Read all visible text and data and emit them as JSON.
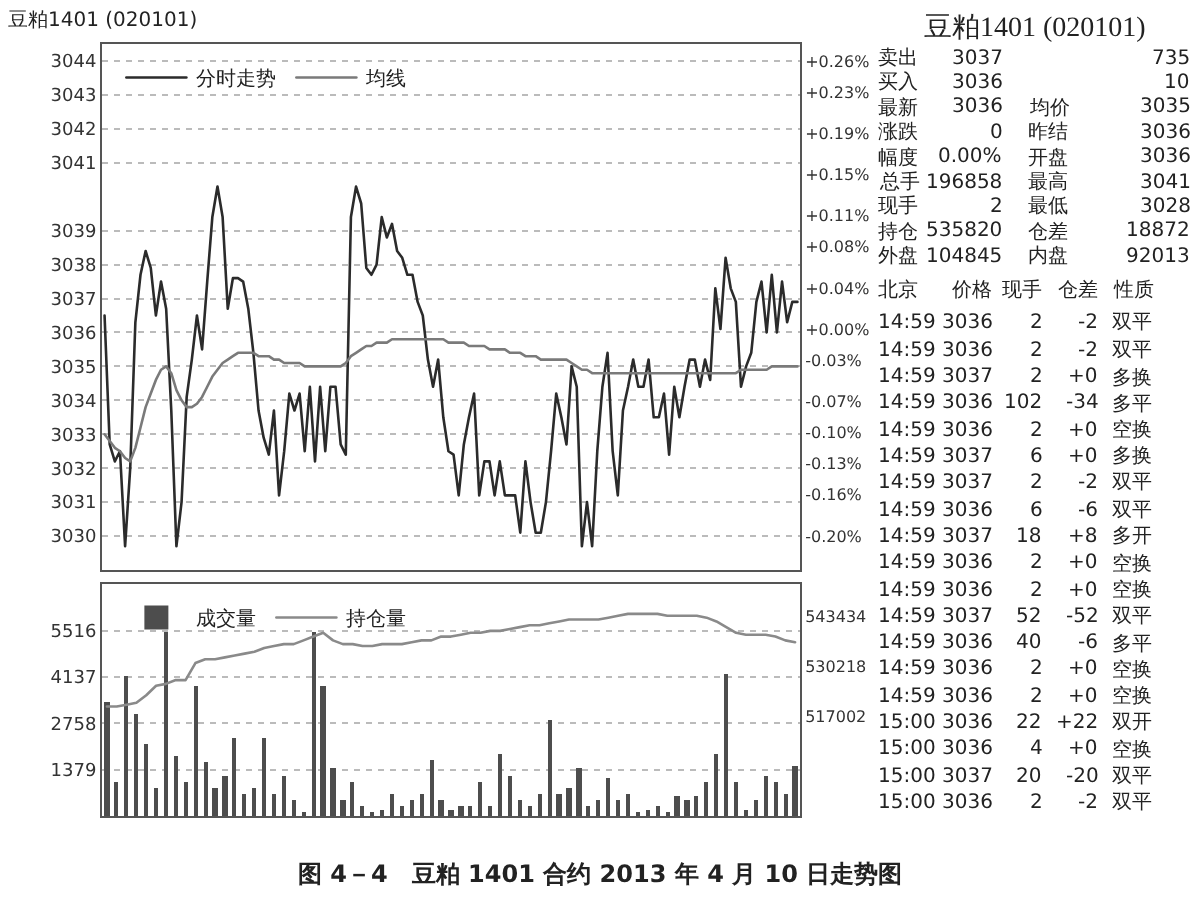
{
  "chart_data": [
    {
      "type": "line",
      "title": "豆粕1401 (020101)",
      "annotations": [
        "图 4－4　豆粕 1401 合约 2013 年 4 月 10 日走势图"
      ],
      "categories": [
        null,
        null,
        null,
        null,
        null,
        null,
        null,
        null,
        null,
        null,
        null,
        null,
        null,
        null,
        null,
        null,
        null,
        null,
        null,
        null,
        null,
        null,
        null,
        null,
        null,
        null,
        null,
        null,
        null,
        null,
        null,
        null,
        null,
        null,
        null,
        null,
        null,
        null,
        null,
        null,
        null,
        null,
        null,
        null,
        null,
        null,
        null,
        null,
        null,
        null,
        null,
        null,
        null,
        null,
        null,
        null,
        null,
        null,
        null,
        null,
        null,
        null,
        null,
        null,
        null,
        null,
        null,
        null,
        null,
        null,
        null,
        null,
        null,
        null,
        null,
        null,
        null,
        null,
        null,
        null,
        null,
        null,
        null,
        null,
        null,
        null,
        null,
        null,
        null,
        null,
        null,
        null,
        null,
        null,
        null,
        null,
        null,
        null,
        null,
        null,
        null,
        null,
        null,
        null,
        null,
        null,
        null,
        null,
        null,
        null,
        null,
        null,
        null,
        null,
        null,
        null,
        null,
        null,
        null,
        null,
        null,
        null,
        null,
        null,
        null,
        null,
        null,
        null,
        null,
        null,
        null,
        null,
        null,
        null,
        null,
        null
      ],
      "series": [
        {
          "name": "分时走势",
          "color": "#2b2b2b",
          "values": [
            3036.5,
            3032.7,
            3032.2,
            3032.5,
            3029.7,
            3032.0,
            3036.3,
            3037.7,
            3038.4,
            3037.9,
            3036.5,
            3037.5,
            3036.7,
            3033.7,
            3029.7,
            3031.0,
            3034.1,
            3035.2,
            3036.5,
            3035.5,
            3037.5,
            3039.4,
            3040.3,
            3039.4,
            3036.7,
            3037.6,
            3037.6,
            3037.5,
            3036.7,
            3035.4,
            3033.7,
            3032.9,
            3032.4,
            3033.7,
            3031.2,
            3032.5,
            3034.2,
            3033.7,
            3034.2,
            3032.5,
            3034.4,
            3032.2,
            3034.4,
            3032.5,
            3034.4,
            3034.4,
            3032.7,
            3032.4,
            3039.4,
            3040.3,
            3039.8,
            3037.9,
            3037.7,
            3038.0,
            3039.4,
            3038.8,
            3039.2,
            3038.4,
            3038.2,
            3037.7,
            3037.7,
            3036.9,
            3036.5,
            3035.2,
            3034.4,
            3035.2,
            3033.5,
            3032.5,
            3032.4,
            3031.2,
            3032.7,
            3033.5,
            3034.2,
            3031.2,
            3032.2,
            3032.2,
            3031.2,
            3032.2,
            3031.2,
            3031.2,
            3031.2,
            3030.1,
            3032.2,
            3031.0,
            3030.1,
            3030.1,
            3031.0,
            3032.5,
            3034.2,
            3033.5,
            3032.7,
            3035.0,
            3034.4,
            3029.7,
            3031.0,
            3029.7,
            3032.5,
            3034.4,
            3035.4,
            3032.5,
            3031.2,
            3033.7,
            3034.4,
            3035.2,
            3034.4,
            3034.4,
            3035.2,
            3033.5,
            3033.5,
            3034.2,
            3032.4,
            3034.4,
            3033.5,
            3034.4,
            3035.2,
            3035.2,
            3034.4,
            3035.2,
            3034.6,
            3037.3,
            3036.1,
            3038.2,
            3037.3,
            3036.9,
            3034.4,
            3035.0,
            3035.4,
            3036.9,
            3037.5,
            3036.0,
            3037.7,
            3036.0,
            3037.5,
            3036.3,
            3036.9,
            3036.9
          ]
        },
        {
          "name": "均线",
          "color": "#7a7a7a",
          "values": [
            3033.0,
            3032.8,
            3032.6,
            3032.5,
            3032.3,
            3032.2,
            3032.6,
            3033.2,
            3033.8,
            3034.2,
            3034.6,
            3034.9,
            3035.0,
            3034.8,
            3034.3,
            3034.0,
            3033.8,
            3033.8,
            3033.9,
            3034.1,
            3034.4,
            3034.7,
            3034.9,
            3035.1,
            3035.2,
            3035.3,
            3035.4,
            3035.4,
            3035.4,
            3035.4,
            3035.3,
            3035.3,
            3035.3,
            3035.2,
            3035.2,
            3035.1,
            3035.1,
            3035.1,
            3035.1,
            3035.0,
            3035.0,
            3035.0,
            3035.0,
            3035.0,
            3035.0,
            3035.0,
            3035.0,
            3035.1,
            3035.3,
            3035.4,
            3035.5,
            3035.6,
            3035.6,
            3035.7,
            3035.7,
            3035.7,
            3035.8,
            3035.8,
            3035.8,
            3035.8,
            3035.8,
            3035.8,
            3035.8,
            3035.8,
            3035.8,
            3035.8,
            3035.8,
            3035.7,
            3035.7,
            3035.7,
            3035.7,
            3035.6,
            3035.6,
            3035.6,
            3035.6,
            3035.5,
            3035.5,
            3035.5,
            3035.5,
            3035.4,
            3035.4,
            3035.4,
            3035.3,
            3035.3,
            3035.3,
            3035.2,
            3035.2,
            3035.2,
            3035.2,
            3035.2,
            3035.2,
            3035.1,
            3035.0,
            3034.9,
            3034.9,
            3034.8,
            3034.8,
            3034.8,
            3034.8,
            3034.8,
            3034.8,
            3034.8,
            3034.8,
            3034.8,
            3034.8,
            3034.8,
            3034.8,
            3034.8,
            3034.8,
            3034.8,
            3034.8,
            3034.8,
            3034.8,
            3034.8,
            3034.8,
            3034.8,
            3034.8,
            3034.8,
            3034.8,
            3034.8,
            3034.8,
            3034.8,
            3034.8,
            3034.8,
            3034.9,
            3034.9,
            3034.9,
            3034.9,
            3034.9,
            3034.9,
            3035.0,
            3035.0,
            3035.0,
            3035.0,
            3035.0,
            3035.0
          ]
        }
      ],
      "ylim": [
        3029,
        3044.5
      ],
      "yticks": [
        3030,
        3031,
        3032,
        3033,
        3034,
        3035,
        3036,
        3037,
        3038,
        3039,
        3041,
        3042,
        3043,
        3044
      ],
      "y2lim": [
        -0.2329,
        0.2764
      ],
      "y2ticks": [
        {
          "value": -0.2,
          "label": "-0.20%"
        },
        {
          "value": -0.16,
          "label": "-0.16%"
        },
        {
          "value": -0.13,
          "label": "-0.13%"
        },
        {
          "value": -0.1,
          "label": "-0.10%"
        },
        {
          "value": -0.07,
          "label": "-0.07%"
        },
        {
          "value": -0.03,
          "label": "-0.03%"
        },
        {
          "value": 0,
          "label": "+0.00%"
        },
        {
          "value": 0.04,
          "label": "+0.04%"
        },
        {
          "value": 0.08,
          "label": "+0.08%"
        },
        {
          "value": 0.11,
          "label": "+0.11%"
        },
        {
          "value": 0.15,
          "label": "+0.15%"
        },
        {
          "value": 0.19,
          "label": "+0.19%"
        },
        {
          "value": 0.23,
          "label": "+0.23%"
        },
        {
          "value": 0.26,
          "label": "+0.26%"
        }
      ],
      "grid": "y",
      "legend": "top left",
      "tick_labels": "y"
    },
    {
      "type": "bar",
      "categories": [
        null,
        null,
        null,
        null,
        null,
        null,
        null,
        null,
        null,
        null,
        null,
        null,
        null,
        null,
        null,
        null,
        null,
        null,
        null,
        null,
        null,
        null,
        null,
        null,
        null,
        null,
        null,
        null,
        null,
        null,
        null,
        null,
        null,
        null,
        null,
        null,
        null,
        null,
        null,
        null,
        null,
        null,
        null,
        null,
        null,
        null,
        null,
        null,
        null,
        null,
        null,
        null,
        null,
        null,
        null,
        null,
        null,
        null,
        null,
        null,
        null,
        null,
        null,
        null,
        null,
        null,
        null,
        null,
        null,
        null,
        null
      ],
      "series": [
        {
          "name": "成交量",
          "color": "#4d4d4d",
          "values": [
            3420,
            1030,
            4160,
            3050,
            2130,
            850,
            5450,
            1770,
            1030,
            3880,
            1580,
            850,
            1210,
            2320,
            660,
            850,
            2320,
            660,
            1210,
            480,
            110,
            5450,
            3880,
            1400,
            480,
            1030,
            290,
            110,
            200,
            660,
            290,
            480,
            660,
            1670,
            480,
            200,
            290,
            290,
            1030,
            290,
            1860,
            1210,
            480,
            290,
            660,
            2870,
            660,
            850,
            1400,
            290,
            480,
            1120,
            480,
            660,
            110,
            200,
            290,
            110,
            570,
            480,
            570,
            1030,
            1860,
            4250,
            1030,
            200,
            480,
            1210,
            1030,
            660,
            1490
          ]
        },
        {
          "name": "持仓量",
          "type": "line",
          "axis": "y2",
          "color": "#8a8a8a",
          "values": [
            519500,
            519500,
            520000,
            520500,
            522500,
            525000,
            525500,
            526500,
            526500,
            531000,
            532000,
            532000,
            532500,
            533000,
            533500,
            534000,
            535000,
            535500,
            536000,
            536000,
            537000,
            538000,
            539000,
            537000,
            536000,
            536000,
            535500,
            535500,
            536000,
            536000,
            536000,
            536500,
            537000,
            537000,
            538000,
            538000,
            538500,
            539000,
            539000,
            539500,
            539500,
            540000,
            540500,
            541000,
            541000,
            541500,
            542000,
            542500,
            542500,
            542500,
            542500,
            543000,
            543500,
            544000,
            544000,
            544000,
            544000,
            543500,
            543500,
            543500,
            543500,
            543000,
            542000,
            540500,
            539000,
            538500,
            538500,
            538500,
            538000,
            537000,
            536500
          ]
        }
      ],
      "ylim": [
        0,
        6900
      ],
      "yticks": [
        1379,
        2758,
        4137,
        5516
      ],
      "y2lim": [
        490570,
        551900
      ],
      "y2ticks": [
        517002,
        530218,
        543434
      ],
      "grid": "y",
      "legend": "top left",
      "tick_labels": "y"
    },
    {
      "type": "other",
      "title": "豆粕1401 (020101)",
      "annotations": [
        "卖出 3037 735",
        "买入 3036 10",
        "最新 3036 均价 3035",
        "涨跌 0 昨结 3036",
        "幅度 0.00% 开盘 3036",
        "总手 196858 最高 3041",
        "现手 2 最低 3028",
        "持仓 535820 仓差 18872",
        "外盘 104845 内盘 92013",
        "北京 价格 现手 仓差 性质",
        "14:59 3036 2 -2 双平",
        "14:59 3036 2 -2 双平",
        "14:59 3037 2 +0 多换",
        "14:59 3036 102 -34 多平",
        "14:59 3036 2 +0 空换",
        "14:59 3037 6 +0 多换",
        "14:59 3037 2 -2 双平",
        "14:59 3036 6 -6 双平",
        "14:59 3037 18 +8 多开",
        "14:59 3036 2 +0 空换",
        "14:59 3036 2 +0 空换",
        "14:59 3037 52 -52 双平",
        "14:59 3036 40 -6 多平",
        "14:59 3036 2 +0 空换",
        "14:59 3036 2 +0 空换",
        "15:00 3036 22 +22 双开",
        "15:00 3036 4 +0 空换",
        "15:00 3037 20 -20 双平",
        "15:00 3036 2 -2 双平"
      ]
    }
  ]
}
